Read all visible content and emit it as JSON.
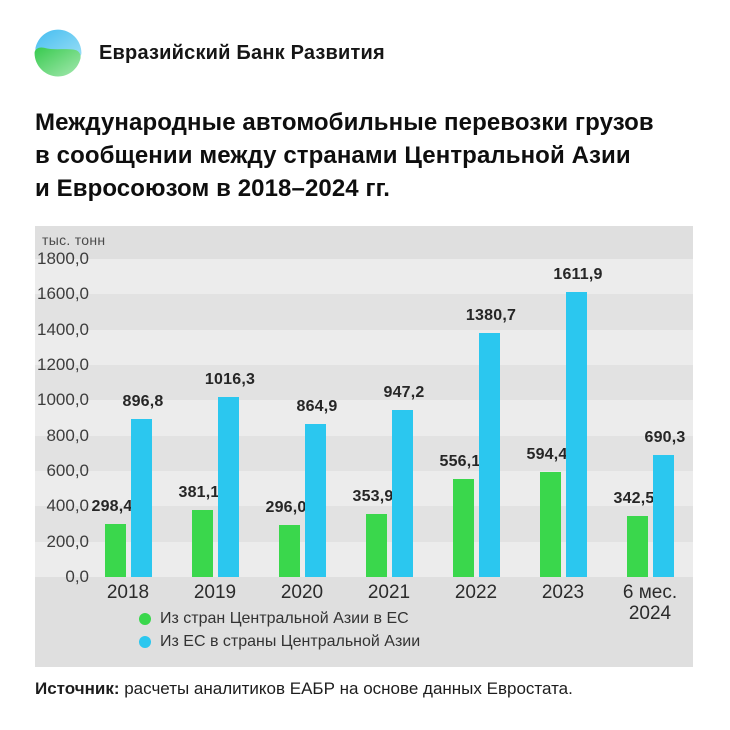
{
  "header": {
    "logo_text": "Евразийский Банк Развития",
    "logo_colors": {
      "blue": "#52c2ee",
      "green": "#4ad05e"
    }
  },
  "title": "Международные автомобильные перевозки грузов\nв сообщении между странами Центральной Азии\nи Евросоюзом в 2018–2024 гг.",
  "chart_data": {
    "type": "bar",
    "title": "Международные автомобильные перевозки грузов в сообщении между странами Центральной Азии и Евросоюзом в 2018–2024 гг.",
    "unit_label": "тыс. тонн",
    "categories": [
      "2018",
      "2019",
      "2020",
      "2021",
      "2022",
      "2023",
      "6 мес.\n2024"
    ],
    "series": [
      {
        "key": "central-asia-to-eu",
        "name": "Из стран Центральной Азии в ЕС",
        "color": "#3ad74c",
        "values": [
          298.4,
          381.1,
          296.0,
          353.9,
          556.1,
          594.4,
          342.5
        ]
      },
      {
        "key": "eu-to-central-asia",
        "name": "Из ЕС в страны Центральной Азии",
        "color": "#2bc7ef",
        "values": [
          896.8,
          1016.3,
          864.9,
          947.2,
          1380.7,
          1611.9,
          690.3
        ]
      }
    ],
    "ylim": [
      0,
      1800
    ],
    "ytick_step": 200,
    "decimal_separator": ",",
    "grid": "horizontal-banded",
    "legend_position": "bottom"
  },
  "source": {
    "label": "Источник:",
    "text": " расчеты аналитиков ЕАБР на основе данных Евростата."
  }
}
